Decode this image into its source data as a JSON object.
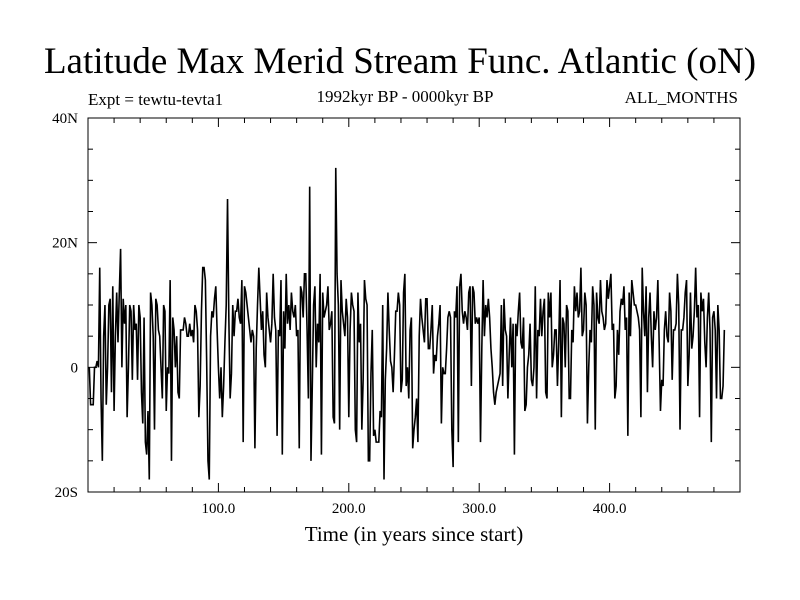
{
  "chart_data": {
    "type": "line",
    "title": "Latitude Max Merid Stream Func. Atlantic (oN)",
    "subtitle_left": "Expt = tewtu-tevta1",
    "subtitle_center": "1992kyr BP - 0000kyr BP",
    "subtitle_right": "ALL_MONTHS",
    "xlabel": "Time (in years since start)",
    "ylabel": "",
    "xlim": [
      0,
      500
    ],
    "ylim": [
      -20,
      40
    ],
    "x_ticks": [
      {
        "value": 100,
        "label": "100.0"
      },
      {
        "value": 200,
        "label": "200.0"
      },
      {
        "value": 300,
        "label": "300.0"
      },
      {
        "value": 400,
        "label": "400.0"
      }
    ],
    "y_ticks": [
      {
        "value": 40,
        "label": "40N"
      },
      {
        "value": 20,
        "label": "20N"
      },
      {
        "value": 0,
        "label": "0"
      },
      {
        "value": -20,
        "label": "20S"
      }
    ],
    "grid": false,
    "legend": "none",
    "line_color": "#000000",
    "series": [
      {
        "x_start": 1,
        "x_step": 1,
        "values": [
          0,
          -6,
          -6,
          -6,
          0,
          0,
          1,
          0,
          16,
          -5,
          -15,
          5,
          10,
          -6,
          0,
          10,
          11,
          -4,
          13,
          -7,
          5,
          12,
          4,
          12,
          19,
          0,
          11,
          7,
          10,
          -8,
          0,
          10,
          9,
          -2,
          10,
          6,
          7,
          -2,
          10,
          8,
          -4,
          -9,
          8,
          -12,
          -14,
          -7,
          -18,
          12,
          10,
          5,
          -10,
          11,
          10,
          6,
          5,
          0,
          -5,
          10,
          9,
          -7,
          0,
          -1,
          14,
          -15,
          8,
          6,
          0,
          5,
          -4,
          -5,
          6,
          6,
          6,
          8,
          7,
          5,
          5,
          7,
          5,
          6,
          4,
          10,
          9,
          6,
          -8,
          -3,
          9,
          16,
          16,
          14,
          1,
          -15,
          -18,
          5,
          9,
          8,
          11,
          13,
          6,
          0,
          -5,
          0,
          -8,
          -3,
          4,
          10,
          27,
          8,
          -5,
          -1,
          10,
          5,
          9,
          9,
          11,
          8,
          7,
          14,
          -12,
          13,
          12,
          10,
          8,
          6,
          4,
          6,
          5,
          -13,
          3,
          10,
          16,
          11,
          6,
          9,
          2,
          0,
          12,
          8,
          6,
          4,
          7,
          15,
          8,
          6,
          -11,
          6,
          5,
          14,
          -14,
          9,
          3,
          15,
          7,
          10,
          6,
          12,
          9,
          8,
          10,
          5,
          6,
          -13,
          13,
          12,
          8,
          15,
          15,
          6,
          -5,
          29,
          -15,
          -3,
          10,
          13,
          0,
          7,
          4,
          15,
          -14,
          12,
          8,
          9,
          10,
          13,
          6,
          7,
          9,
          -8,
          -9,
          32,
          15,
          10,
          -10,
          14,
          9,
          7,
          5,
          11,
          8,
          -8,
          6,
          12,
          10,
          9,
          -10,
          -12,
          12,
          4,
          7,
          -10,
          -2,
          14,
          11,
          10,
          -15,
          -15,
          -1,
          6,
          -11,
          -10,
          -12,
          -12,
          -12,
          -7,
          -8,
          10,
          -18,
          -2,
          3,
          12,
          6,
          1,
          0,
          -4,
          2,
          9,
          9,
          12,
          10,
          -4,
          -2,
          12,
          15,
          -3,
          0,
          -5,
          6,
          8,
          -13,
          -10,
          -8,
          -5,
          -12,
          5,
          11,
          8,
          6,
          4,
          11,
          11,
          3,
          3,
          6,
          10,
          -1,
          2,
          1,
          5,
          7,
          10,
          -9,
          0,
          -1,
          -1,
          3,
          8,
          9,
          8,
          -10,
          -16,
          9,
          8,
          13,
          -12,
          13,
          15,
          9,
          7,
          9,
          8,
          6,
          12,
          13,
          -3,
          13,
          12,
          7,
          8,
          7,
          8,
          -12,
          3,
          14,
          5,
          10,
          8,
          11,
          8,
          3,
          0,
          -4,
          -6,
          -4,
          -3,
          -2,
          -1,
          10,
          -3,
          11,
          6,
          5,
          -5,
          2,
          8,
          0,
          7,
          -14,
          7,
          5,
          9,
          12,
          4,
          3,
          8,
          -7,
          -6,
          0,
          2,
          7,
          -2,
          -3,
          0,
          13,
          -5,
          6,
          5,
          11,
          5,
          9,
          11,
          -4,
          -5,
          12,
          8,
          12,
          0,
          2,
          6,
          6,
          -3,
          4,
          14,
          -8,
          8,
          7,
          0,
          10,
          9,
          -5,
          -5,
          6,
          4,
          13,
          9,
          12,
          8,
          9,
          16,
          5,
          6,
          12,
          10,
          -9,
          0,
          6,
          4,
          13,
          10,
          -10,
          12,
          8,
          7,
          14,
          9,
          8,
          6,
          7,
          14,
          11,
          13,
          15,
          6,
          7,
          -5,
          -3,
          6,
          2,
          9,
          11,
          10,
          13,
          6,
          8,
          -11,
          12,
          5,
          14,
          12,
          10,
          10,
          9,
          8,
          6,
          -8,
          16,
          9,
          5,
          13,
          -4,
          8,
          12,
          5,
          0,
          9,
          6,
          8,
          14,
          4,
          -7,
          -2,
          -3,
          6,
          9,
          5,
          4,
          12,
          9,
          -2,
          6,
          6,
          7,
          15,
          10,
          -10,
          6,
          6,
          8,
          12,
          14,
          -3,
          2,
          12,
          3,
          5,
          9,
          16,
          8,
          10,
          -8,
          12,
          9,
          11,
          4,
          0,
          8,
          12,
          6,
          -12,
          8,
          9,
          6,
          -5,
          10,
          6,
          -5,
          -5,
          -3,
          6
        ]
      }
    ]
  }
}
